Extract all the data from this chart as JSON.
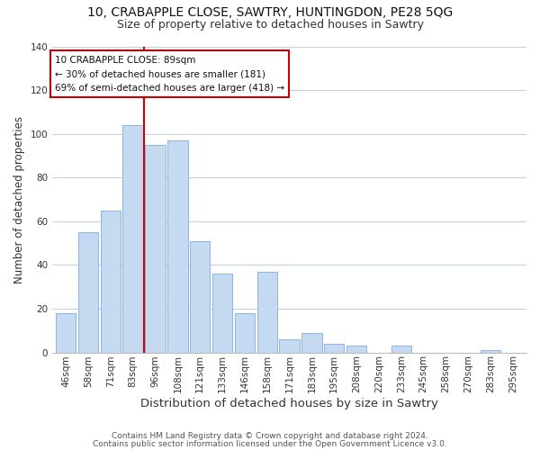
{
  "title1": "10, CRABAPPLE CLOSE, SAWTRY, HUNTINGDON, PE28 5QG",
  "title2": "Size of property relative to detached houses in Sawtry",
  "xlabel": "Distribution of detached houses by size in Sawtry",
  "ylabel": "Number of detached properties",
  "categories": [
    "46sqm",
    "58sqm",
    "71sqm",
    "83sqm",
    "96sqm",
    "108sqm",
    "121sqm",
    "133sqm",
    "146sqm",
    "158sqm",
    "171sqm",
    "183sqm",
    "195sqm",
    "208sqm",
    "220sqm",
    "233sqm",
    "245sqm",
    "258sqm",
    "270sqm",
    "283sqm",
    "295sqm"
  ],
  "values": [
    18,
    55,
    65,
    104,
    95,
    97,
    51,
    36,
    18,
    37,
    6,
    9,
    4,
    3,
    0,
    3,
    0,
    0,
    0,
    1,
    0
  ],
  "bar_color": "#c5d9f1",
  "bar_edge_color": "#8db4e2",
  "vline_x": 3.5,
  "vline_color": "#cc0000",
  "annotation_title": "10 CRABAPPLE CLOSE: 89sqm",
  "annotation_line1": "← 30% of detached houses are smaller (181)",
  "annotation_line2": "69% of semi-detached houses are larger (418) →",
  "annotation_box_color": "#ffffff",
  "annotation_box_edge": "#cc0000",
  "ylim": [
    0,
    140
  ],
  "footer1": "Contains HM Land Registry data © Crown copyright and database right 2024.",
  "footer2": "Contains public sector information licensed under the Open Government Licence v3.0.",
  "bg_color": "#ffffff",
  "grid_color": "#c0cfe0",
  "title1_fontsize": 10,
  "title2_fontsize": 9,
  "xlabel_fontsize": 9.5,
  "ylabel_fontsize": 8.5,
  "tick_fontsize": 7.5,
  "footer_fontsize": 6.5,
  "ann_fontsize": 7.5
}
